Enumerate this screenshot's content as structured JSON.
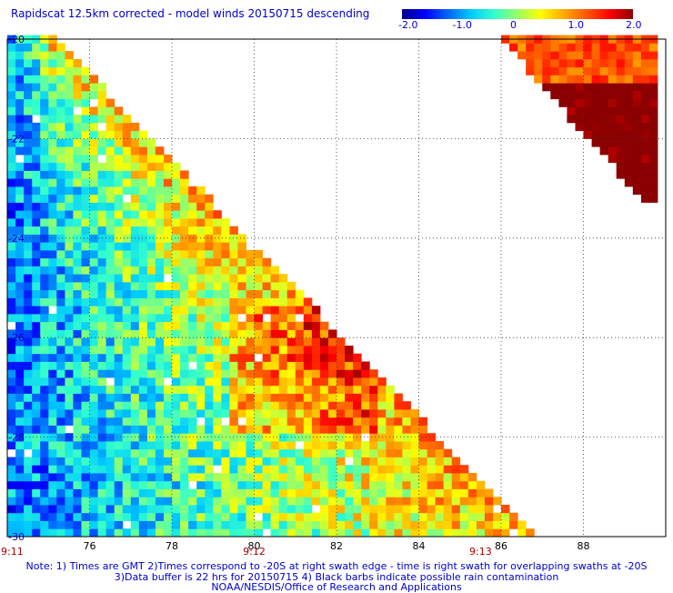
{
  "title": "Rapidscat 12.5km corrected - model winds 20150715 descending",
  "colorbar": {
    "ticks": [
      "-2.0",
      "-1.0",
      "0",
      "1.0",
      "2.0"
    ],
    "colors": [
      "#00008b",
      "#0000ff",
      "#0066ff",
      "#00ccff",
      "#33ffcc",
      "#99ff66",
      "#ffff00",
      "#ffaa00",
      "#ff5500",
      "#ff0000",
      "#8b0000"
    ]
  },
  "notes": {
    "line1": "Note: 1) Times are GMT 2)Times correspond to -20S at right swath edge - time is right swath for overlapping swaths at -20S",
    "line2": "3)Data buffer is 22 hrs for 20150715 4) Black barbs indicate possible rain contamination",
    "line3": "NOAA/NESDIS/Office of Research and Applications"
  },
  "time_labels": [
    {
      "text": "9:11",
      "lon": 74.0
    },
    {
      "text": "9:12",
      "lon": 80.0
    },
    {
      "text": "9:13",
      "lon": 85.5
    }
  ],
  "chart_data": {
    "type": "heatmap",
    "title": "Rapidscat 12.5km corrected - model winds 20150715 descending",
    "xlim": [
      74,
      90
    ],
    "ylim": [
      -30,
      -20
    ],
    "x_ticks": [
      76,
      78,
      80,
      82,
      84,
      86,
      88
    ],
    "y_ticks": [
      -20,
      -22,
      -24,
      -26,
      -28,
      -30
    ],
    "y_tick_labels": [
      "-20",
      "-22",
      "-24",
      "-26",
      "-28",
      "-30"
    ],
    "value_range": [
      -2.0,
      2.0
    ],
    "grid": true,
    "swaths": [
      {
        "region": "left",
        "description": "triangular swath west of diagonal from (75.2,-20) to (86.8,-30)",
        "dominant_values": [
          -1.0,
          1.2
        ]
      },
      {
        "region": "upper-right",
        "description": "narrow swath near 86-90E, -20 to -23",
        "dominant_values": [
          1.0,
          2.0
        ]
      }
    ]
  }
}
